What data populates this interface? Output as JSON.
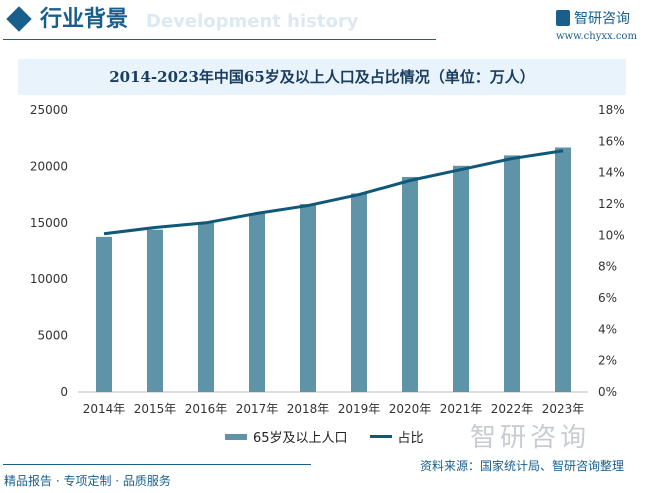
{
  "header": {
    "title": "行业背景",
    "subtitle": "Development history",
    "brand": "智研咨询",
    "url": "www.chyxx.com"
  },
  "chart_data": {
    "type": "bar+line",
    "title": "2014-2023年中国65岁及以上人口及占比情况（单位：万人）",
    "categories": [
      "2014年",
      "2015年",
      "2016年",
      "2017年",
      "2018年",
      "2019年",
      "2020年",
      "2021年",
      "2022年",
      "2023年"
    ],
    "series": [
      {
        "name": "65岁及以上人口",
        "type": "bar",
        "axis": "left",
        "color": "#5f93a8",
        "values": [
          13755,
          14386,
          15003,
          15831,
          16658,
          17603,
          19064,
          20056,
          20978,
          21676
        ]
      },
      {
        "name": "占比",
        "type": "line",
        "axis": "right",
        "color": "#0f5878",
        "values": [
          10.1,
          10.5,
          10.8,
          11.4,
          11.9,
          12.6,
          13.5,
          14.2,
          14.9,
          15.4
        ]
      }
    ],
    "left_axis": {
      "ylim": [
        0,
        25000
      ],
      "ticks": [
        "0",
        "5000",
        "10000",
        "15000",
        "20000",
        "25000"
      ]
    },
    "right_axis": {
      "ylim": [
        0,
        18
      ],
      "ticks": [
        "0%",
        "2%",
        "4%",
        "6%",
        "8%",
        "10%",
        "12%",
        "14%",
        "16%",
        "18%"
      ]
    },
    "grid": false,
    "legend": "bottom"
  },
  "footer": {
    "slogan": "精品报告 · 专项定制 · 品质服务",
    "source": "资料来源：国家统计局、智研咨询整理",
    "watermark": "智研咨询"
  }
}
